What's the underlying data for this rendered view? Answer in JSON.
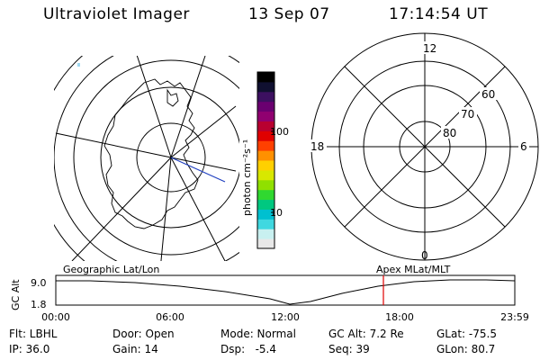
{
  "header": {
    "title": "Ultraviolet Imager",
    "date": "13 Sep 07",
    "time": "17:14:54 UT"
  },
  "colorbar": {
    "unit_label": "photon cm⁻²s⁻¹",
    "tick_100": "100",
    "tick_10": "10",
    "colors": [
      "#e8e8e8",
      "#c8f0f0",
      "#40d8e0",
      "#00c0d0",
      "#00c880",
      "#30d830",
      "#90e000",
      "#d8e800",
      "#ffd000",
      "#ff9000",
      "#ff4000",
      "#e00000",
      "#b80030",
      "#900070",
      "#6a0070",
      "#3c1060",
      "#101030",
      "#000000"
    ]
  },
  "polar_plot": {
    "labels": {
      "top": "12",
      "bottom": "0",
      "left": "18",
      "right": "6",
      "r60": "60",
      "r70": "70",
      "r80": "80"
    }
  },
  "timeline": {
    "ylabel": "GC Alt",
    "ytick_top": "9.0",
    "ytick_bottom": "1.8",
    "left_title": "Geographic Lat/Lon",
    "right_title": "Apex MLat/MLT",
    "xticks": [
      "00:00",
      "06:00",
      "12:00",
      "18:00",
      "23:59"
    ],
    "marker_color": "#e00000"
  },
  "footer": {
    "row1": [
      "Flt: LBHL",
      "Door: Open",
      "Mode: Normal",
      "GC Alt: 7.2 Re",
      "GLat: -75.5"
    ],
    "row2": [
      "IP: 36.0",
      "Gain: 14",
      "Dsp:   -5.4",
      "Seq: 39",
      "GLon: 80.7"
    ]
  }
}
